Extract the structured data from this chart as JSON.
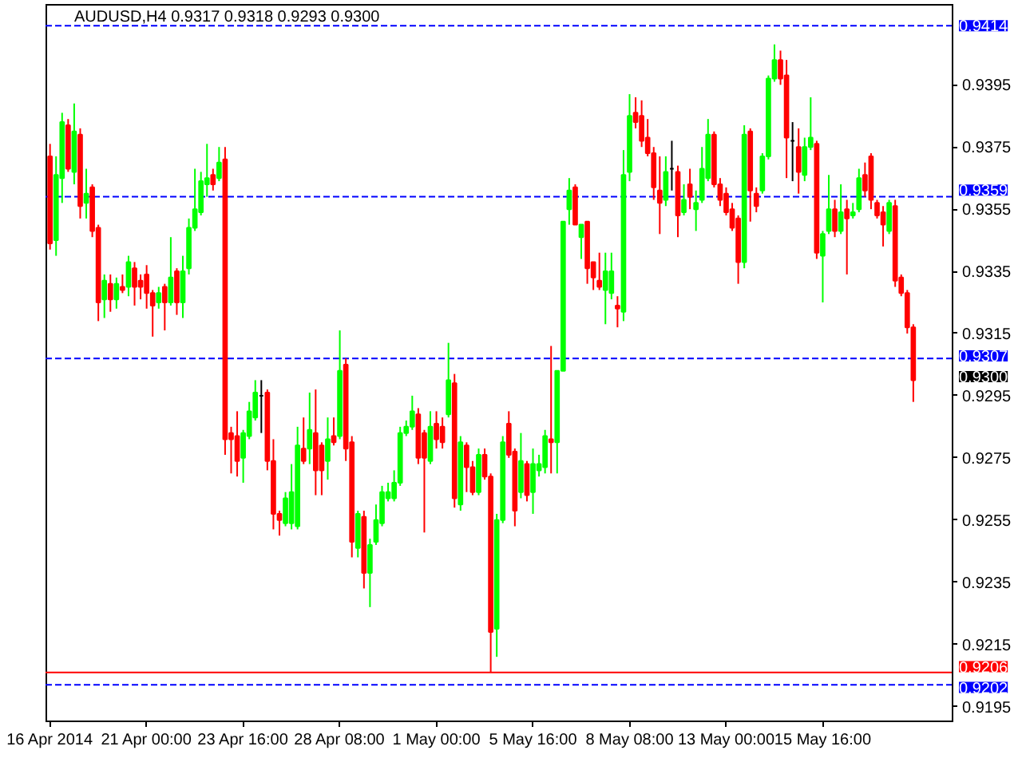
{
  "chart_data": {
    "type": "candlestick",
    "title": "AUDUSD,H4 0.9317 0.9318 0.9293 0.9300",
    "categories": [
      "16 Apr 2014",
      null,
      null,
      null,
      null,
      null,
      null,
      null,
      null,
      null,
      null,
      null,
      null,
      null,
      null,
      null,
      "21 Apr 00:00",
      null,
      null,
      null,
      null,
      null,
      null,
      null,
      null,
      null,
      null,
      null,
      null,
      null,
      null,
      null,
      "23 Apr 16:00",
      null,
      null,
      null,
      null,
      null,
      null,
      null,
      null,
      null,
      null,
      null,
      null,
      null,
      null,
      null,
      "28 Apr 08:00",
      null,
      null,
      null,
      null,
      null,
      null,
      null,
      null,
      null,
      null,
      null,
      null,
      null,
      null,
      null,
      "1 May 00:00",
      null,
      null,
      null,
      null,
      null,
      null,
      null,
      null,
      null,
      null,
      null,
      null,
      null,
      null,
      null,
      "5 May 16:00",
      null,
      null,
      null,
      null,
      null,
      null,
      null,
      null,
      null,
      null,
      null,
      null,
      null,
      null,
      null,
      "8 May 08:00",
      null,
      null,
      null,
      null,
      null,
      null,
      null,
      null,
      null,
      null,
      null,
      null,
      null,
      null,
      null,
      "13 May 00:00",
      null,
      null,
      null,
      null,
      null,
      null,
      null,
      null,
      null,
      null,
      null,
      null,
      null,
      null,
      null,
      "15 May 16:00",
      null,
      null,
      null,
      null,
      null,
      null,
      null,
      null,
      null,
      null,
      null,
      null,
      null,
      null,
      null
    ],
    "ohlc": [
      [
        0.9372,
        0.9376,
        0.9342,
        0.9344
      ],
      [
        0.9345,
        0.9372,
        0.934,
        0.9366
      ],
      [
        0.9365,
        0.9386,
        0.9357,
        0.9383
      ],
      [
        0.9382,
        0.9384,
        0.9367,
        0.9368
      ],
      [
        0.9367,
        0.9389,
        0.9363,
        0.938
      ],
      [
        0.9379,
        0.9381,
        0.9352,
        0.9356
      ],
      [
        0.9357,
        0.9368,
        0.9352,
        0.936
      ],
      [
        0.9362,
        0.9363,
        0.9346,
        0.9348
      ],
      [
        0.9349,
        0.935,
        0.9319,
        0.9325
      ],
      [
        0.9326,
        0.9334,
        0.932,
        0.9332
      ],
      [
        0.9331,
        0.9334,
        0.9322,
        0.9326
      ],
      [
        0.9326,
        0.9333,
        0.9323,
        0.9331
      ],
      [
        0.933,
        0.9334,
        0.9328,
        0.9329
      ],
      [
        0.933,
        0.934,
        0.9327,
        0.9338
      ],
      [
        0.9336,
        0.9338,
        0.9324,
        0.933
      ],
      [
        0.9332,
        0.9334,
        0.9326,
        0.933
      ],
      [
        0.9334,
        0.9337,
        0.9323,
        0.9328
      ],
      [
        0.9328,
        0.9329,
        0.9314,
        0.9324
      ],
      [
        0.9325,
        0.933,
        0.9323,
        0.9328
      ],
      [
        0.933,
        0.9331,
        0.9316,
        0.9325
      ],
      [
        0.9325,
        0.9346,
        0.9324,
        0.9333
      ],
      [
        0.9335,
        0.9336,
        0.9321,
        0.9325
      ],
      [
        0.9325,
        0.934,
        0.932,
        0.9335
      ],
      [
        0.9336,
        0.9352,
        0.9334,
        0.9349
      ],
      [
        0.9349,
        0.9368,
        0.9348,
        0.9355
      ],
      [
        0.9354,
        0.9367,
        0.9353,
        0.9364
      ],
      [
        0.9363,
        0.9376,
        0.9359,
        0.9365
      ],
      [
        0.9366,
        0.9368,
        0.9361,
        0.9363
      ],
      [
        0.9365,
        0.9375,
        0.9364,
        0.937
      ],
      [
        0.9371,
        0.9375,
        0.9276,
        0.9281
      ],
      [
        0.9283,
        0.9285,
        0.927,
        0.9281
      ],
      [
        0.9282,
        0.929,
        0.9269,
        0.9274
      ],
      [
        0.9275,
        0.9284,
        0.9267,
        0.9283
      ],
      [
        0.9282,
        0.9293,
        0.9281,
        0.929
      ],
      [
        0.9288,
        0.93,
        0.9287,
        0.9296
      ],
      [
        0.9295,
        0.93,
        0.9283,
        0.9295
      ],
      [
        0.9296,
        0.9297,
        0.9271,
        0.9274
      ],
      [
        0.9274,
        0.9281,
        0.9252,
        0.9257
      ],
      [
        0.9257,
        0.9258,
        0.925,
        0.9255
      ],
      [
        0.9254,
        0.9264,
        0.9253,
        0.9262
      ],
      [
        0.9254,
        0.9273,
        0.9252,
        0.9264
      ],
      [
        0.9253,
        0.9285,
        0.9252,
        0.9279
      ],
      [
        0.9278,
        0.9288,
        0.9273,
        0.9274
      ],
      [
        0.9278,
        0.9296,
        0.9273,
        0.9284
      ],
      [
        0.9283,
        0.9297,
        0.9263,
        0.9271
      ],
      [
        0.9279,
        0.928,
        0.9263,
        0.9271
      ],
      [
        0.9274,
        0.9288,
        0.9268,
        0.9281
      ],
      [
        0.9282,
        0.9288,
        0.9279,
        0.928
      ],
      [
        0.9282,
        0.9316,
        0.9281,
        0.9303
      ],
      [
        0.9305,
        0.9307,
        0.9274,
        0.9278
      ],
      [
        0.928,
        0.9282,
        0.9243,
        0.9248
      ],
      [
        0.9246,
        0.9258,
        0.9243,
        0.9257
      ],
      [
        0.9256,
        0.9258,
        0.9233,
        0.9238
      ],
      [
        0.9238,
        0.9249,
        0.9227,
        0.9247
      ],
      [
        0.9248,
        0.926,
        0.9247,
        0.9255
      ],
      [
        0.9254,
        0.9266,
        0.9253,
        0.9264
      ],
      [
        0.9262,
        0.9267,
        0.9261,
        0.9264
      ],
      [
        0.9262,
        0.9271,
        0.9261,
        0.9267
      ],
      [
        0.9267,
        0.9285,
        0.9266,
        0.9283
      ],
      [
        0.9283,
        0.9287,
        0.9282,
        0.9285
      ],
      [
        0.9285,
        0.9295,
        0.9284,
        0.929
      ],
      [
        0.9289,
        0.9291,
        0.9273,
        0.9275
      ],
      [
        0.9283,
        0.9284,
        0.9251,
        0.9275
      ],
      [
        0.9274,
        0.929,
        0.9273,
        0.9285
      ],
      [
        0.9286,
        0.929,
        0.9278,
        0.9281
      ],
      [
        0.9285,
        0.9288,
        0.9278,
        0.928
      ],
      [
        0.9289,
        0.9312,
        0.9288,
        0.93
      ],
      [
        0.9299,
        0.9302,
        0.9259,
        0.9262
      ],
      [
        0.926,
        0.9282,
        0.9258,
        0.928
      ],
      [
        0.9279,
        0.928,
        0.9264,
        0.9272
      ],
      [
        0.9272,
        0.9274,
        0.9263,
        0.9264
      ],
      [
        0.9264,
        0.9278,
        0.9263,
        0.9276
      ],
      [
        0.9276,
        0.9278,
        0.9268,
        0.9269
      ],
      [
        0.9269,
        0.927,
        0.9206,
        0.9219
      ],
      [
        0.922,
        0.9257,
        0.9211,
        0.9255
      ],
      [
        0.9255,
        0.9282,
        0.9254,
        0.928
      ],
      [
        0.9286,
        0.929,
        0.9275,
        0.9276
      ],
      [
        0.9277,
        0.9278,
        0.9253,
        0.9258
      ],
      [
        0.9264,
        0.9283,
        0.9262,
        0.9274
      ],
      [
        0.9273,
        0.9274,
        0.9261,
        0.9263
      ],
      [
        0.9264,
        0.9278,
        0.9257,
        0.9273
      ],
      [
        0.9271,
        0.9276,
        0.9269,
        0.9273
      ],
      [
        0.9272,
        0.9284,
        0.927,
        0.9282
      ],
      [
        0.9281,
        0.9311,
        0.927,
        0.928
      ],
      [
        0.928,
        0.9303,
        0.927,
        0.9303
      ],
      [
        0.9303,
        0.9351,
        0.9303,
        0.9351
      ],
      [
        0.9355,
        0.9365,
        0.935,
        0.9361
      ],
      [
        0.9362,
        0.9363,
        0.935,
        0.935
      ],
      [
        0.9346,
        0.935,
        0.9339,
        0.935
      ],
      [
        0.9351,
        0.9351,
        0.9331,
        0.9336
      ],
      [
        0.9338,
        0.9338,
        0.9329,
        0.9333
      ],
      [
        0.9332,
        0.9341,
        0.9329,
        0.933
      ],
      [
        0.9329,
        0.9341,
        0.9318,
        0.9335
      ],
      [
        0.9328,
        0.9341,
        0.9326,
        0.9335
      ],
      [
        0.9324,
        0.9327,
        0.9317,
        0.9323
      ],
      [
        0.9322,
        0.9374,
        0.9319,
        0.9366
      ],
      [
        0.9367,
        0.9392,
        0.9364,
        0.9385
      ],
      [
        0.9386,
        0.9391,
        0.9381,
        0.9383
      ],
      [
        0.9385,
        0.939,
        0.9375,
        0.9377
      ],
      [
        0.9378,
        0.9384,
        0.9372,
        0.9373
      ],
      [
        0.9373,
        0.9375,
        0.9358,
        0.9362
      ],
      [
        0.9361,
        0.9372,
        0.9347,
        0.9357
      ],
      [
        0.9358,
        0.9372,
        0.9356,
        0.9367
      ],
      [
        0.9368,
        0.9377,
        0.9361,
        0.9368
      ],
      [
        0.9367,
        0.9369,
        0.9346,
        0.9353
      ],
      [
        0.9354,
        0.9363,
        0.9353,
        0.9358
      ],
      [
        0.9363,
        0.9368,
        0.9355,
        0.9359
      ],
      [
        0.9355,
        0.9361,
        0.9348,
        0.9357
      ],
      [
        0.9358,
        0.9375,
        0.9357,
        0.9368
      ],
      [
        0.9365,
        0.9384,
        0.9364,
        0.9379
      ],
      [
        0.9379,
        0.938,
        0.9362,
        0.9363
      ],
      [
        0.9363,
        0.9365,
        0.9356,
        0.9358
      ],
      [
        0.936,
        0.9362,
        0.9353,
        0.9354
      ],
      [
        0.9355,
        0.9357,
        0.9348,
        0.9349
      ],
      [
        0.9352,
        0.9353,
        0.9331,
        0.9338
      ],
      [
        0.9338,
        0.9382,
        0.9336,
        0.9379
      ],
      [
        0.938,
        0.9381,
        0.9351,
        0.9361
      ],
      [
        0.936,
        0.9362,
        0.9354,
        0.9356
      ],
      [
        0.9361,
        0.9373,
        0.936,
        0.9372
      ],
      [
        0.9372,
        0.9398,
        0.9371,
        0.9397
      ],
      [
        0.9397,
        0.9408,
        0.9396,
        0.9403
      ],
      [
        0.9403,
        0.9406,
        0.9395,
        0.9397
      ],
      [
        0.9398,
        0.9403,
        0.9365,
        0.9378
      ],
      [
        0.9377,
        0.9383,
        0.9364,
        0.9377
      ],
      [
        0.9375,
        0.9381,
        0.936,
        0.9367
      ],
      [
        0.9366,
        0.9378,
        0.9364,
        0.9375
      ],
      [
        0.9375,
        0.9391,
        0.9374,
        0.9378
      ],
      [
        0.9376,
        0.9377,
        0.9339,
        0.9341
      ],
      [
        0.934,
        0.9348,
        0.9325,
        0.9347
      ],
      [
        0.9348,
        0.9366,
        0.9347,
        0.9355
      ],
      [
        0.9355,
        0.9358,
        0.9346,
        0.9348
      ],
      [
        0.9348,
        0.9363,
        0.9347,
        0.9354
      ],
      [
        0.9355,
        0.9358,
        0.9334,
        0.9352
      ],
      [
        0.9353,
        0.9357,
        0.9352,
        0.9354
      ],
      [
        0.9355,
        0.9368,
        0.9354,
        0.9365
      ],
      [
        0.9366,
        0.937,
        0.9359,
        0.9361
      ],
      [
        0.9372,
        0.9373,
        0.9355,
        0.9358
      ],
      [
        0.9357,
        0.9358,
        0.9352,
        0.9353
      ],
      [
        0.9354,
        0.9356,
        0.9343,
        0.935
      ],
      [
        0.9348,
        0.9358,
        0.9347,
        0.9357
      ],
      [
        0.9356,
        0.9358,
        0.933,
        0.9332
      ],
      [
        0.9333,
        0.9334,
        0.9327,
        0.9328
      ],
      [
        0.9328,
        0.9329,
        0.9315,
        0.9317
      ],
      [
        0.9317,
        0.9318,
        0.9293,
        0.93
      ]
    ],
    "colors": [
      "#ff0000",
      "#00ff00",
      "#00ff00",
      "#ff0000",
      "#00ff00",
      "#ff0000",
      "#00ff00",
      "#ff0000",
      "#ff0000",
      "#00ff00",
      "#ff0000",
      "#00ff00",
      "#ff0000",
      "#00ff00",
      "#ff0000",
      "#ff0000",
      "#ff0000",
      "#ff0000",
      "#00ff00",
      "#ff0000",
      "#00ff00",
      "#ff0000",
      "#00ff00",
      "#00ff00",
      "#00ff00",
      "#00ff00",
      "#00ff00",
      "#ff0000",
      "#00ff00",
      "#ff0000",
      "#ff0000",
      "#ff0000",
      "#00ff00",
      "#00ff00",
      "#00ff00",
      "#000000",
      "#ff0000",
      "#ff0000",
      "#ff0000",
      "#00ff00",
      "#00ff00",
      "#00ff00",
      "#ff0000",
      "#00ff00",
      "#ff0000",
      "#ff0000",
      "#00ff00",
      "#ff0000",
      "#00ff00",
      "#ff0000",
      "#ff0000",
      "#00ff00",
      "#ff0000",
      "#00ff00",
      "#00ff00",
      "#00ff00",
      "#00ff00",
      "#00ff00",
      "#00ff00",
      "#00ff00",
      "#00ff00",
      "#ff0000",
      "#ff0000",
      "#00ff00",
      "#ff0000",
      "#ff0000",
      "#00ff00",
      "#ff0000",
      "#00ff00",
      "#ff0000",
      "#ff0000",
      "#00ff00",
      "#ff0000",
      "#ff0000",
      "#00ff00",
      "#00ff00",
      "#ff0000",
      "#ff0000",
      "#00ff00",
      "#ff0000",
      "#00ff00",
      "#00ff00",
      "#00ff00",
      "#ff0000",
      "#00ff00",
      "#00ff00",
      "#00ff00",
      "#ff0000",
      "#00ff00",
      "#ff0000",
      "#ff0000",
      "#ff0000",
      "#00ff00",
      "#00ff00",
      "#ff0000",
      "#00ff00",
      "#00ff00",
      "#ff0000",
      "#ff0000",
      "#ff0000",
      "#ff0000",
      "#ff0000",
      "#00ff00",
      "#000000",
      "#ff0000",
      "#00ff00",
      "#ff0000",
      "#00ff00",
      "#00ff00",
      "#00ff00",
      "#ff0000",
      "#ff0000",
      "#ff0000",
      "#ff0000",
      "#ff0000",
      "#00ff00",
      "#ff0000",
      "#ff0000",
      "#00ff00",
      "#00ff00",
      "#00ff00",
      "#ff0000",
      "#ff0000",
      "#000000",
      "#ff0000",
      "#00ff00",
      "#00ff00",
      "#ff0000",
      "#00ff00",
      "#00ff00",
      "#ff0000",
      "#00ff00",
      "#ff0000",
      "#00ff00",
      "#00ff00",
      "#ff0000",
      "#ff0000",
      "#ff0000",
      "#ff0000",
      "#00ff00",
      "#ff0000",
      "#ff0000",
      "#ff0000",
      "#ff0000"
    ],
    "ylim": [
      0.919,
      0.9421
    ],
    "yticks": [
      0.9195,
      0.9215,
      0.9235,
      0.9255,
      0.9275,
      0.9295,
      0.9315,
      0.9335,
      0.9355,
      0.9375,
      0.9395
    ],
    "ref_lines": [
      {
        "axis": "y",
        "value": 0.9414,
        "label": "0.9414",
        "color": "#0000ff",
        "line_style": "dashed"
      },
      {
        "axis": "y",
        "value": 0.9359,
        "label": "0.9359",
        "color": "#0000ff",
        "line_style": "dashed"
      },
      {
        "axis": "y",
        "value": 0.9307,
        "label": "0.9307",
        "color": "#0000ff",
        "line_style": "dashed"
      },
      {
        "axis": "y",
        "value": 0.9206,
        "label": "0.9206",
        "color": "#ff0000",
        "line_style": "solid"
      },
      {
        "axis": "y",
        "value": 0.9202,
        "label": "0.9202",
        "color": "#0000ff",
        "line_style": "dashed"
      }
    ],
    "annotations": [
      "0.9300"
    ]
  }
}
